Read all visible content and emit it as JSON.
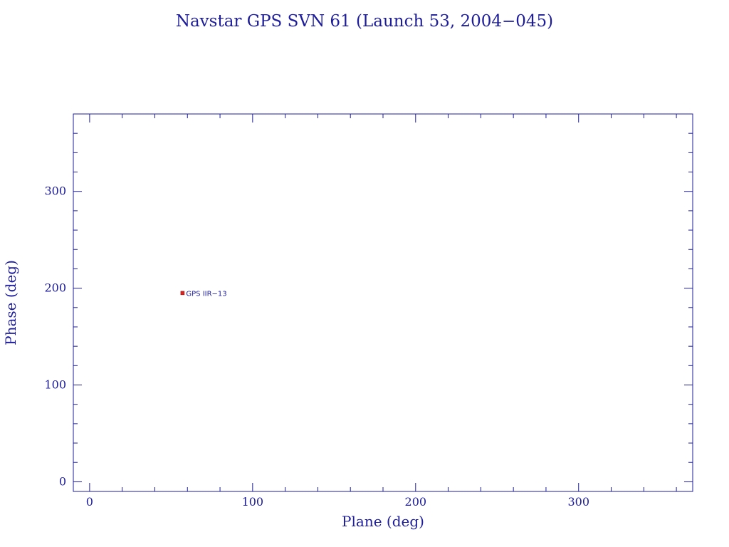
{
  "chart_data": {
    "type": "scatter",
    "title": "Navstar GPS SVN 61 (Launch 53, 2004−045)",
    "xlabel": "Plane (deg)",
    "ylabel": "Phase (deg)",
    "xlim": [
      -10,
      370
    ],
    "ylim": [
      -10,
      380
    ],
    "xticks": [
      0,
      100,
      200,
      300
    ],
    "yticks": [
      0,
      100,
      200,
      300
    ],
    "x_minor_step": 20,
    "y_minor_step": 20,
    "grid": false,
    "points": [
      {
        "x": 57,
        "y": 195,
        "label": "GPS IIR−13"
      }
    ]
  },
  "colors": {
    "axis": "#1c1c9c",
    "text": "#1c1c9c",
    "marker": "#dd2222"
  }
}
